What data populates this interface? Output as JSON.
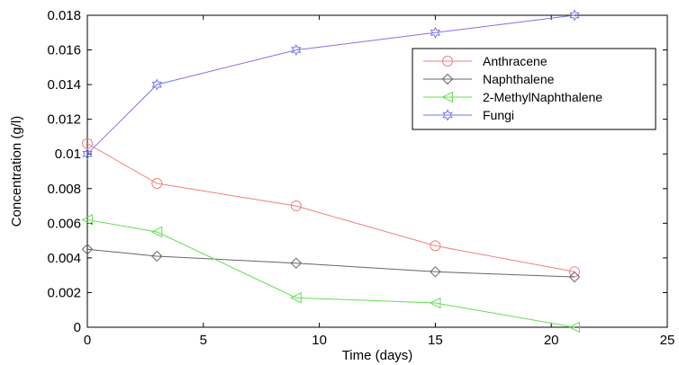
{
  "chart_data": {
    "type": "line",
    "title": "",
    "xlabel": "Time (days)",
    "ylabel": "Concentration (g/l)",
    "xlim": [
      0,
      25
    ],
    "ylim": [
      0,
      0.018
    ],
    "x_ticks": [
      "0",
      "5",
      "10",
      "15",
      "20",
      "25"
    ],
    "y_ticks": [
      "0",
      "0.002",
      "0.004",
      "0.006",
      "0.008",
      "0.01",
      "0.012",
      "0.014",
      "0.016",
      "0.018"
    ],
    "grid": false,
    "legend_position": "top-right",
    "series": [
      {
        "name": "Anthracene",
        "color": "#f08080",
        "marker": "circle",
        "x": [
          0,
          3,
          9,
          15,
          21
        ],
        "y": [
          0.0106,
          0.0083,
          0.007,
          0.0047,
          0.0032
        ]
      },
      {
        "name": "Naphthalene",
        "color": "#666666",
        "marker": "diamond",
        "x": [
          0,
          3,
          9,
          15,
          21
        ],
        "y": [
          0.0045,
          0.0041,
          0.0037,
          0.0032,
          0.0029
        ]
      },
      {
        "name": "2-MethylNaphthalene",
        "color": "#66dd55",
        "marker": "triangle-left",
        "x": [
          0,
          3,
          9,
          15,
          21
        ],
        "y": [
          0.0062,
          0.0055,
          0.0017,
          0.0014,
          0.0
        ]
      },
      {
        "name": "Fungi",
        "color": "#7777ee",
        "marker": "hexagram",
        "x": [
          0,
          3,
          9,
          15,
          21
        ],
        "y": [
          0.01,
          0.014,
          0.016,
          0.017,
          0.018
        ]
      }
    ]
  }
}
